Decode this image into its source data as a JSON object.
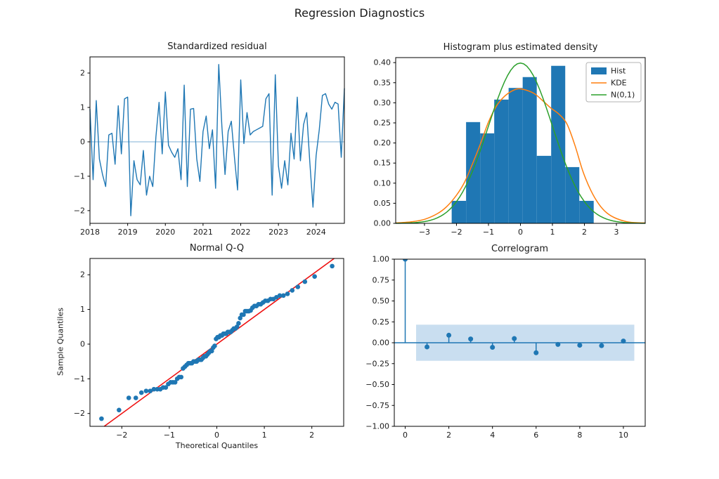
{
  "figure_title": "Regression Diagnostics",
  "colors": {
    "series_blue": "#1f77b4",
    "zero_line_light": "#8fbbda",
    "hist": "#1f77b4",
    "kde": "#ff7f0e",
    "normal": "#2ca02c",
    "qq_dot": "#1f77b4",
    "qq_line": "#ee1111",
    "acf_stem": "#1f77b4",
    "conf_band": "#c9def0",
    "spine": "#000000",
    "tick_text": "#1a1a1a",
    "legend_border": "#b3b3b3"
  },
  "chart_data": [
    {
      "id": "residuals",
      "type": "line",
      "title": "Standardized residual",
      "x_start_year": 2018,
      "x_interval": "monthly",
      "values": [
        0.95,
        -1.1,
        1.2,
        -0.5,
        -0.95,
        -1.3,
        0.2,
        0.25,
        -0.65,
        1.05,
        -0.35,
        1.25,
        1.3,
        -2.15,
        -0.55,
        -1.1,
        -1.25,
        -0.25,
        -1.55,
        -1.0,
        -1.3,
        0.15,
        1.15,
        -0.35,
        1.45,
        -0.1,
        -0.3,
        -0.45,
        -0.2,
        -1.1,
        1.65,
        -1.3,
        0.95,
        0.97,
        -0.5,
        -1.15,
        0.3,
        0.75,
        -0.2,
        0.35,
        -1.35,
        2.25,
        0.45,
        -0.95,
        0.3,
        0.6,
        -0.45,
        -1.4,
        1.8,
        -0.05,
        0.85,
        0.2,
        0.3,
        0.35,
        0.4,
        0.45,
        1.25,
        1.4,
        -1.55,
        1.95,
        -0.7,
        -1.35,
        -0.55,
        -1.25,
        0.25,
        -0.5,
        1.3,
        -0.55,
        0.5,
        0.85,
        -0.6,
        -1.9,
        -0.4,
        0.35,
        1.35,
        1.4,
        1.1,
        0.95,
        1.15,
        1.1,
        -0.45,
        1.55
      ],
      "zero_line_y": 0,
      "xlim": [
        2018,
        2024.75
      ],
      "ylim": [
        -2.37,
        2.47
      ],
      "xticks": {
        "values": [
          2018,
          2019,
          2020,
          2021,
          2022,
          2023,
          2024
        ],
        "labels": [
          "2018",
          "2019",
          "2020",
          "2021",
          "2022",
          "2023",
          "2024"
        ]
      },
      "yticks": {
        "values": [
          -2,
          -1,
          0,
          1,
          2
        ],
        "labels": [
          "−2",
          "−1",
          "0",
          "1",
          "2"
        ]
      }
    },
    {
      "id": "histogram",
      "type": "histogram",
      "title": "Histogram plus estimated density",
      "bin_edges": [
        -2.15,
        -1.7,
        -1.26,
        -0.82,
        -0.37,
        0.07,
        0.51,
        0.96,
        1.4,
        1.84,
        2.29
      ],
      "bin_heights": [
        0.056,
        0.252,
        0.224,
        0.308,
        0.337,
        0.364,
        0.168,
        0.392,
        0.14,
        0.056
      ],
      "kde": {
        "x": [
          -3.9,
          -3.4,
          -3.0,
          -2.6,
          -2.3,
          -2.0,
          -1.75,
          -1.5,
          -1.25,
          -1.0,
          -0.75,
          -0.5,
          -0.25,
          -0.05,
          0.2,
          0.45,
          0.7,
          0.95,
          1.2,
          1.45,
          1.7,
          1.95,
          2.2,
          2.45,
          2.7,
          3.0,
          3.4,
          3.9
        ],
        "y": [
          0.001,
          0.004,
          0.01,
          0.024,
          0.042,
          0.07,
          0.102,
          0.148,
          0.198,
          0.252,
          0.292,
          0.316,
          0.33,
          0.335,
          0.331,
          0.322,
          0.305,
          0.287,
          0.272,
          0.248,
          0.195,
          0.13,
          0.082,
          0.048,
          0.026,
          0.012,
          0.003,
          0.001
        ]
      },
      "normal": {
        "mean": 0,
        "std": 1
      },
      "xlim": [
        -3.9,
        3.9
      ],
      "ylim": [
        0,
        0.4125
      ],
      "xticks": {
        "values": [
          -3,
          -2,
          -1,
          0,
          1,
          2,
          3
        ],
        "labels": [
          "−3",
          "−2",
          "−1",
          "0",
          "1",
          "2",
          "3"
        ]
      },
      "yticks": {
        "values": [
          0,
          0.05,
          0.1,
          0.15,
          0.2,
          0.25,
          0.3,
          0.35,
          0.4
        ],
        "labels": [
          "0.00",
          "0.05",
          "0.10",
          "0.15",
          "0.20",
          "0.25",
          "0.30",
          "0.35",
          "0.40"
        ]
      },
      "legend": {
        "items": [
          {
            "label": "Hist",
            "swatch": "patch",
            "color_key": "hist"
          },
          {
            "label": "KDE",
            "swatch": "line",
            "color_key": "kde"
          },
          {
            "label": "N(0,1)",
            "swatch": "line",
            "color_key": "normal"
          }
        ]
      }
    },
    {
      "id": "qq",
      "type": "scatter",
      "title": "Normal Q-Q",
      "xlabel": "Theoretical Quantiles",
      "ylabel": "Sample Quantiles",
      "sample_from": "residuals",
      "reference_line": "y=x",
      "xticks": {
        "values": [
          -2,
          -1,
          0,
          1,
          2
        ],
        "labels": [
          "−2",
          "−1",
          "0",
          "1",
          "2"
        ]
      },
      "yticks": {
        "values": [
          -2,
          -1,
          0,
          1,
          2
        ],
        "labels": [
          "−2",
          "−1",
          "0",
          "1",
          "2"
        ]
      }
    },
    {
      "id": "correlogram",
      "type": "stem",
      "title": "Correlogram",
      "lags": [
        0,
        1,
        2,
        3,
        4,
        5,
        6,
        7,
        8,
        9,
        10
      ],
      "acf": [
        1.0,
        -0.05,
        0.09,
        0.045,
        -0.055,
        0.05,
        -0.12,
        -0.02,
        -0.03,
        -0.035,
        0.02
      ],
      "conf_band": {
        "low": -0.216,
        "high": 0.216,
        "x_from": 0.5,
        "x_to": 10.5
      },
      "xlim": [
        -0.5,
        11
      ],
      "ylim": [
        -1,
        1
      ],
      "xticks": {
        "values": [
          0,
          2,
          4,
          6,
          8,
          10
        ],
        "labels": [
          "0",
          "2",
          "4",
          "6",
          "8",
          "10"
        ]
      },
      "yticks": {
        "values": [
          -1,
          -0.75,
          -0.5,
          -0.25,
          0,
          0.25,
          0.5,
          0.75,
          1
        ],
        "labels": [
          "−1.00",
          "−0.75",
          "−0.50",
          "−0.25",
          "0.00",
          "0.25",
          "0.50",
          "0.75",
          "1.00"
        ]
      }
    }
  ]
}
